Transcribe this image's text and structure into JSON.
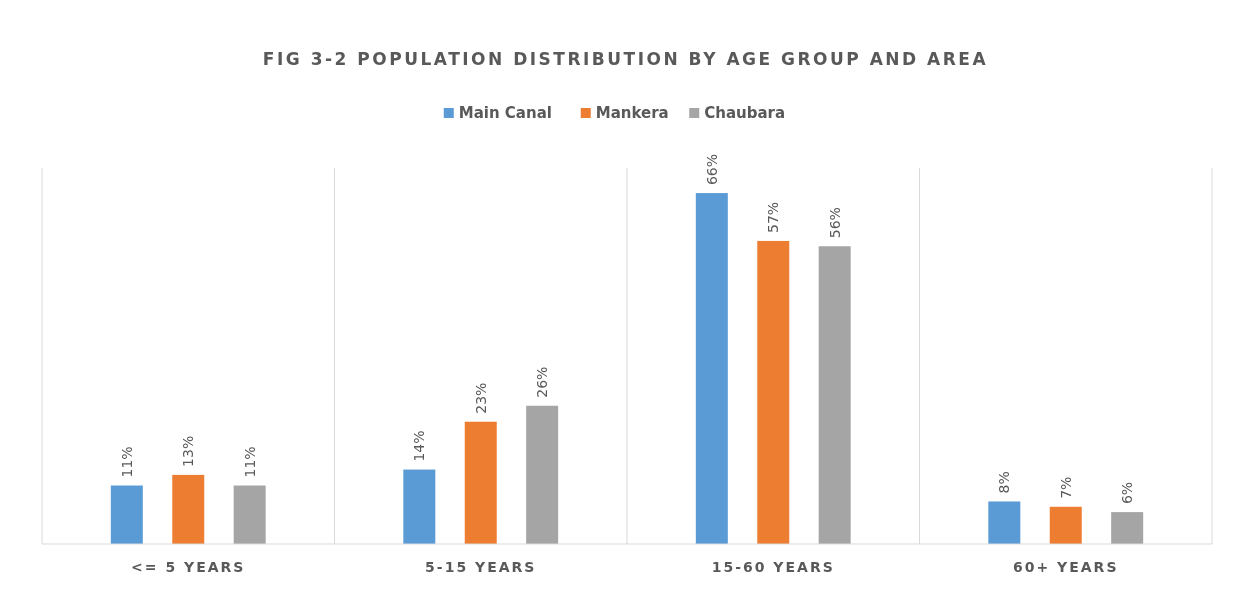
{
  "chart_data": {
    "type": "bar",
    "title": "FIG 3-2  POPULATION DISTRIBUTION BY AGE GROUP AND AREA",
    "categories": [
      "<= 5 YEARS",
      "5-15 YEARS",
      "15-60 YEARS",
      "60+ YEARS"
    ],
    "series": [
      {
        "name": "Main Canal",
        "color": "#5b9bd5",
        "values": [
          11,
          14,
          66,
          8
        ],
        "value_labels": [
          "11%",
          "14%",
          "66%",
          "8%"
        ]
      },
      {
        "name": "Mankera",
        "color": "#ed7d31",
        "values": [
          13,
          23,
          57,
          7
        ],
        "value_labels": [
          "13%",
          "23%",
          "57%",
          "7%"
        ]
      },
      {
        "name": "Chaubara",
        "color": "#a5a5a5",
        "values": [
          11,
          26,
          56,
          6
        ],
        "value_labels": [
          "11%",
          "26%",
          "56%",
          "6%"
        ]
      }
    ],
    "grid": "x",
    "legend": "top"
  }
}
